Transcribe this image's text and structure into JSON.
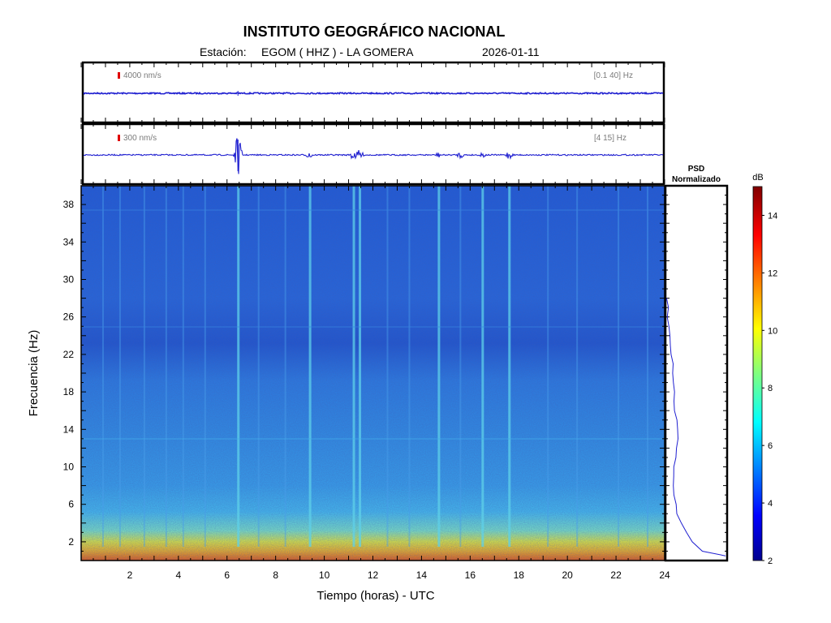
{
  "header": {
    "title": "INSTITUTO GEOGRÁFICO NACIONAL",
    "station_label": "Estación:",
    "station": "EGOM ( HHZ ) - LA GOMERA",
    "date": "2026-01-11"
  },
  "chart_data": [
    {
      "type": "line",
      "name": "seismogram-broadband",
      "scale_label": "4000 nm/s",
      "filter_label": "[0.1 40] Hz",
      "xlim": [
        0,
        24
      ],
      "color": "#1f1fd0"
    },
    {
      "type": "line",
      "name": "seismogram-filtered",
      "scale_label": "300 nm/s",
      "filter_label": "[4 15] Hz",
      "xlim": [
        0,
        24
      ],
      "color": "#1f1fd0",
      "events": [
        {
          "x": 6.45,
          "amp": 1.0
        },
        {
          "x": 9.4,
          "amp": 0.22
        },
        {
          "x": 11.2,
          "amp": 0.3
        },
        {
          "x": 11.45,
          "amp": 0.28
        },
        {
          "x": 14.7,
          "amp": 0.14
        },
        {
          "x": 15.6,
          "amp": 0.18
        },
        {
          "x": 16.5,
          "amp": 0.16
        },
        {
          "x": 17.6,
          "amp": 0.24
        }
      ]
    },
    {
      "type": "heatmap",
      "name": "spectrogram",
      "xlabel": "Tiempo (horas) - UTC",
      "ylabel": "Frecuencia  (Hz)",
      "xlim": [
        0,
        24
      ],
      "ylim": [
        0,
        40
      ],
      "xticks": [
        "2",
        "4",
        "6",
        "8",
        "10",
        "12",
        "14",
        "16",
        "18",
        "20",
        "22",
        "24"
      ],
      "yticks": [
        "2",
        "6",
        "10",
        "14",
        "18",
        "22",
        "26",
        "30",
        "34",
        "38"
      ],
      "vertical_events_hours": [
        0.9,
        1.6,
        2.6,
        3.5,
        4.2,
        5.1,
        6.45,
        7.3,
        8.4,
        9.4,
        11.2,
        11.45,
        12.6,
        13.5,
        14.7,
        15.6,
        16.5,
        17.6,
        19.2,
        20.4,
        22.1,
        23.3
      ]
    },
    {
      "type": "line",
      "name": "psd-normalized",
      "title": "PSD\nNormalizado",
      "title_lines": [
        "PSD",
        "Normalizado"
      ],
      "freq_hz": [
        0.5,
        1,
        2,
        3,
        4,
        5,
        6,
        7,
        8,
        9,
        10,
        11,
        12,
        13,
        14,
        15,
        16,
        17,
        18,
        19,
        20,
        21,
        22,
        23,
        24,
        25,
        26,
        27,
        28
      ],
      "level": [
        1.0,
        0.62,
        0.45,
        0.33,
        0.24,
        0.18,
        0.15,
        0.12,
        0.12,
        0.13,
        0.13,
        0.14,
        0.16,
        0.17,
        0.17,
        0.16,
        0.14,
        0.13,
        0.14,
        0.12,
        0.1,
        0.09,
        0.08,
        0.06,
        0.04,
        0.03,
        0.02,
        0.01,
        0.0
      ]
    }
  ],
  "colorbar": {
    "unit": "dB",
    "ticks": [
      "2",
      "4",
      "6",
      "8",
      "10",
      "12",
      "14"
    ],
    "range": [
      2,
      15
    ]
  }
}
